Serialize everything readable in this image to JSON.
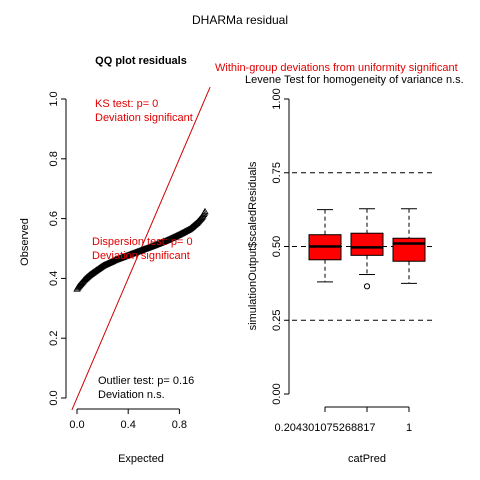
{
  "page_title": "DHARMa residual",
  "colors": {
    "significant": "#e00000",
    "normal": "#000000",
    "box_fill": "#ff0000"
  },
  "chart_data": [
    {
      "type": "scatter",
      "title": "QQ plot residuals",
      "xlabel": "Expected",
      "ylabel": "Observed",
      "xlim": [
        0,
        1
      ],
      "ylim": [
        0,
        1
      ],
      "xticks": [
        "0.0",
        "0.4",
        "0.8"
      ],
      "xtick_values": [
        0,
        0.4,
        0.8
      ],
      "yticks": [
        "0.0",
        "0.2",
        "0.4",
        "0.6",
        "0.8",
        "1.0"
      ],
      "ytick_values": [
        0,
        0.2,
        0.4,
        0.6,
        0.8,
        1.0
      ],
      "reference_line": "y = x",
      "quantile_curve": [
        [
          0.0,
          0.363
        ],
        [
          0.01,
          0.37
        ],
        [
          0.03,
          0.38
        ],
        [
          0.06,
          0.395
        ],
        [
          0.1,
          0.41
        ],
        [
          0.15,
          0.425
        ],
        [
          0.2,
          0.44
        ],
        [
          0.3,
          0.46
        ],
        [
          0.4,
          0.476
        ],
        [
          0.5,
          0.492
        ],
        [
          0.6,
          0.508
        ],
        [
          0.7,
          0.525
        ],
        [
          0.8,
          0.545
        ],
        [
          0.88,
          0.563
        ],
        [
          0.94,
          0.585
        ],
        [
          0.98,
          0.605
        ],
        [
          1.0,
          0.622
        ]
      ],
      "annotations": {
        "ks_test": "KS test: p= 0",
        "ks_result": "Deviation  significant",
        "dispersion_test": "Dispersion test: p= 0",
        "dispersion_result": "Deviation  significant",
        "outlier_test": "Outlier test: p= 0.16",
        "outlier_result": "Deviation  n.s."
      }
    },
    {
      "type": "box",
      "title": "Within-group deviations from uniformity significant",
      "subtitle": "Levene Test for homogeneity of variance n.s.",
      "xlabel": "catPred",
      "ylabel": "simulationOutput$scaledResiduals",
      "ylim": [
        0,
        1
      ],
      "yticks": [
        "0.00",
        "0.25",
        "0.50",
        "0.75",
        "1.00"
      ],
      "ytick_values": [
        0,
        0.25,
        0.5,
        0.75,
        1.0
      ],
      "xtick_labels": [
        "0.204301075268817",
        "1"
      ],
      "xtick_positions": [
        1,
        3
      ],
      "reference_lines": [
        0.25,
        0.5,
        0.75
      ],
      "boxes": [
        {
          "min": 0.38,
          "q1": 0.455,
          "median": 0.5,
          "q3": 0.54,
          "max": 0.625,
          "outliers": []
        },
        {
          "min": 0.405,
          "q1": 0.47,
          "median": 0.497,
          "q3": 0.545,
          "max": 0.628,
          "outliers": [
            0.365
          ]
        },
        {
          "min": 0.375,
          "q1": 0.45,
          "median": 0.51,
          "q3": 0.528,
          "max": 0.628,
          "outliers": []
        }
      ]
    }
  ]
}
